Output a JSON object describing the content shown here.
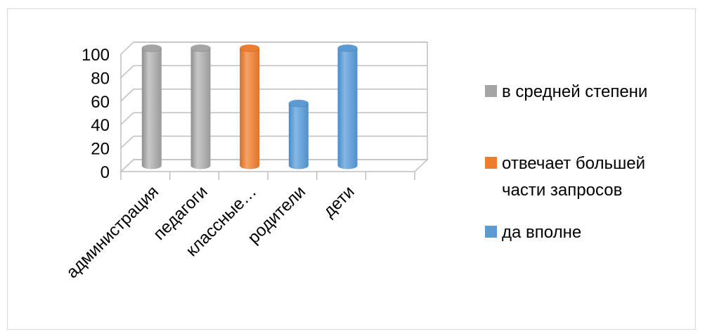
{
  "chart_data": {
    "type": "bar",
    "style": "3d-cylinder",
    "categories": [
      "администрация",
      "педагоги",
      "классные…",
      "родители",
      "дети"
    ],
    "series": [
      {
        "name": "в средней степени",
        "color": "#a5a5a5",
        "values": [
          100,
          100,
          null,
          null,
          null
        ]
      },
      {
        "name": "отвечает большей части запросов",
        "color": "#ed7d31",
        "values": [
          null,
          null,
          100,
          null,
          null
        ]
      },
      {
        "name": "да вполне",
        "color": "#5b9bd5",
        "values": [
          null,
          null,
          null,
          53,
          100
        ]
      }
    ],
    "y_ticks": [
      "0",
      "20",
      "40",
      "60",
      "80",
      "100"
    ],
    "ylim": [
      0,
      100
    ],
    "grid": true,
    "legend_position": "right"
  },
  "legend": [
    {
      "lines": [
        "в средней степени"
      ],
      "color": "#a5a5a5"
    },
    {
      "lines": [
        "отвечает большей",
        "части запросов"
      ],
      "color": "#ed7d31"
    },
    {
      "lines": [
        "да вполне"
      ],
      "color": "#5b9bd5"
    }
  ]
}
